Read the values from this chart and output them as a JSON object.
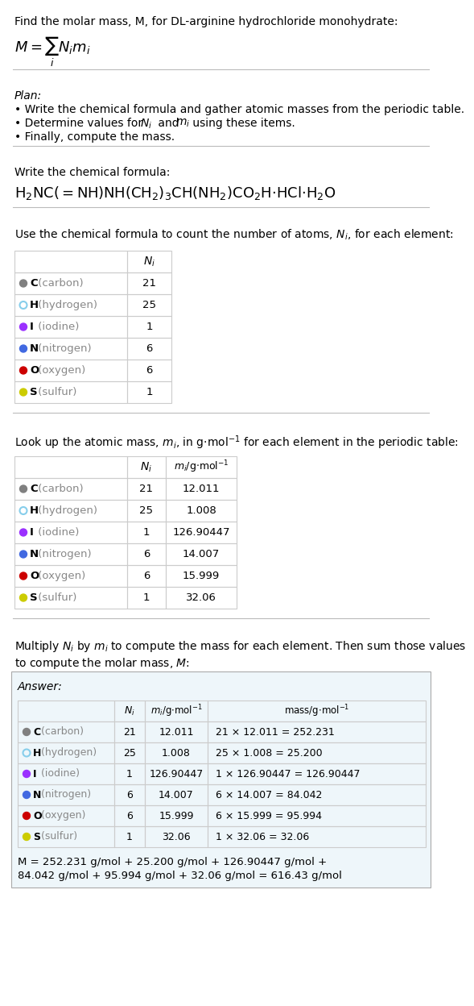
{
  "title_line": "Find the molar mass, M, for DL-arginine hydrochloride monohydrate:",
  "plan_title": "Plan:",
  "plan_bullets": [
    "Write the chemical formula and gather atomic masses from the periodic table.",
    "Determine values for $N_i$ and $m_i$ using these items.",
    "Finally, compute the mass."
  ],
  "chem_formula_label": "Write the chemical formula:",
  "count_label": "Use the chemical formula to count the number of atoms, $N_i$, for each element:",
  "lookup_label": "Look up the atomic mass, $m_i$, in g·mol$^{-1}$ for each element in the periodic table:",
  "multiply_label": "Multiply $N_i$ by $m_i$ to compute the mass for each element. Then sum those values\nto compute the molar mass, $M$:",
  "answer_label": "Answer:",
  "elements": [
    "C (carbon)",
    "H (hydrogen)",
    "I (iodine)",
    "N (nitrogen)",
    "O (oxygen)",
    "S (sulfur)"
  ],
  "element_symbols": [
    "C",
    "H",
    "I",
    "N",
    "O",
    "S"
  ],
  "dot_colors": [
    "#808080",
    "#FFFFFF",
    "#9B30FF",
    "#4169E1",
    "#CC0000",
    "#CCCC00"
  ],
  "dot_filled": [
    true,
    false,
    true,
    true,
    true,
    true
  ],
  "dot_edge_colors": [
    "#808080",
    "#87CEEB",
    "#9B30FF",
    "#4169E1",
    "#CC0000",
    "#CCCC00"
  ],
  "Ni": [
    21,
    25,
    1,
    6,
    6,
    1
  ],
  "mi": [
    "12.011",
    "1.008",
    "126.90447",
    "14.007",
    "15.999",
    "32.06"
  ],
  "mass_calc": [
    "21 × 12.011 = 252.231",
    "25 × 1.008 = 25.200",
    "1 × 126.90447 = 126.90447",
    "6 × 14.007 = 84.042",
    "6 × 15.999 = 95.994",
    "1 × 32.06 = 32.06"
  ],
  "final_answer_line1": "M = 252.231 g/mol + 25.200 g/mol + 126.90447 g/mol +",
  "final_answer_line2": "84.042 g/mol + 95.994 g/mol + 32.06 g/mol = 616.43 g/mol",
  "bg_color": "#FFFFFF",
  "answer_bg": "#EEF6FA",
  "table_border": "#CCCCCC",
  "text_color": "#000000",
  "gray_text": "#888888"
}
